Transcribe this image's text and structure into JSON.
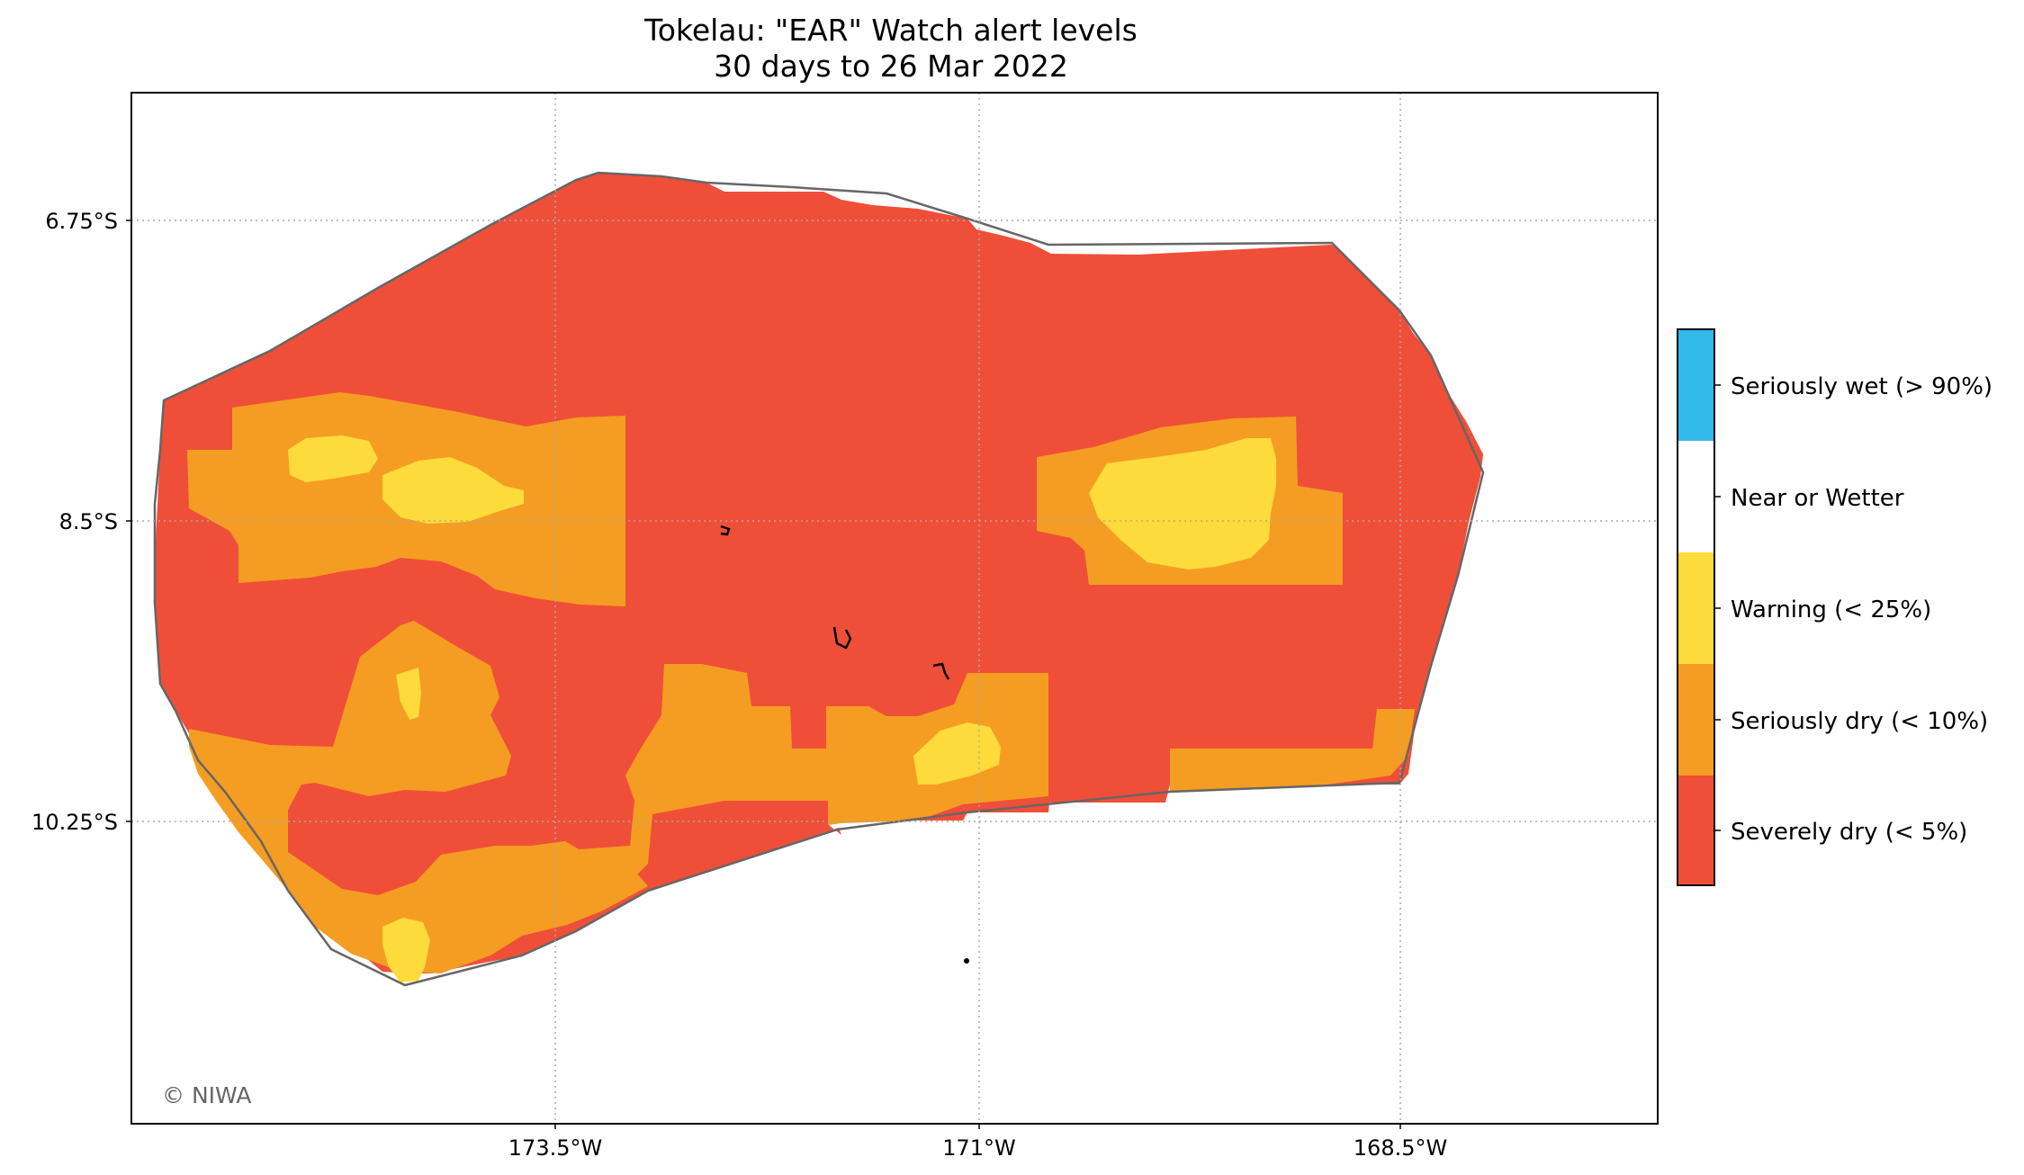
{
  "title": {
    "line1": "Tokelau: \"EAR\" Watch alert levels",
    "line2": "30 days to 26 Mar 2022"
  },
  "map": {
    "lat_labels": [
      "6.75°S",
      "8.5°S",
      "10.25°S"
    ],
    "lon_labels": [
      "173.5°W",
      "171°W",
      "168.5°W"
    ],
    "credit": "© NIWA"
  },
  "legend": {
    "items": [
      {
        "label": "Seriously wet (> 90%)",
        "color": "#31b9ec"
      },
      {
        "label": "Near or Wetter",
        "color": "#ffffff"
      },
      {
        "label": "Warning (< 25%)",
        "color": "#fcdb3a"
      },
      {
        "label": "Seriously dry (< 10%)",
        "color": "#f59d22"
      },
      {
        "label": "Severely dry (< 5%)",
        "color": "#ef4f38"
      }
    ]
  },
  "colors": {
    "severely_dry": "#ef4f38",
    "seriously_dry": "#f59d22",
    "warning": "#fcdb3a",
    "near_or_wetter": "#ffffff",
    "seriously_wet": "#31b9ec",
    "outline": "#666666",
    "grid": "#aaaaaa"
  }
}
